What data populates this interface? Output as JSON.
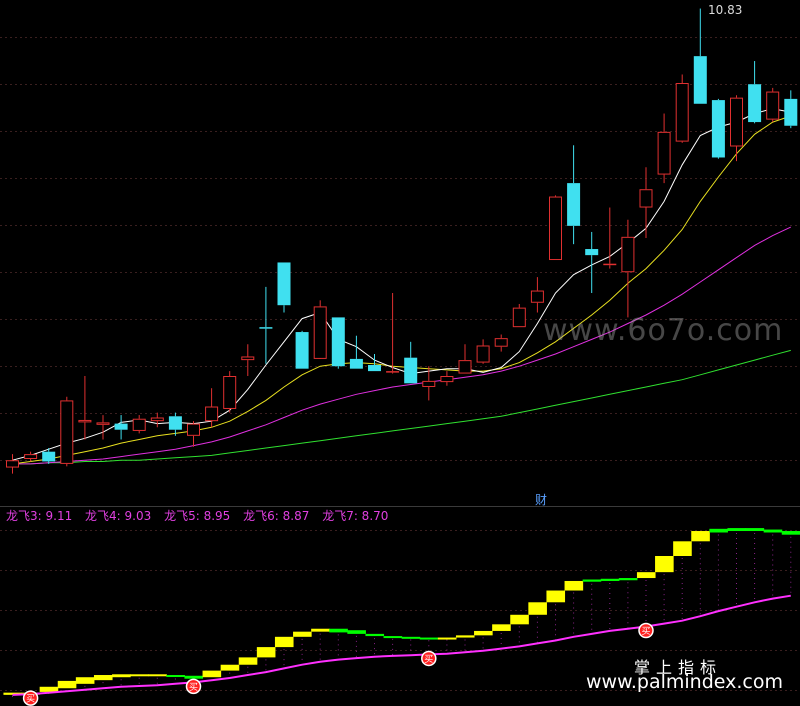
{
  "peak_label": "10.83",
  "cai_marker": "财",
  "watermarks": {
    "site1": "www.6o7o.com",
    "site2_cn": "掌上指标",
    "site2": "www.palmindex.com"
  },
  "indicator_legend": [
    {
      "label": "龙飞3: 9.11"
    },
    {
      "label": "龙飞4: 9.03"
    },
    {
      "label": "龙飞5: 8.95"
    },
    {
      "label": "龙飞6: 8.87"
    },
    {
      "label": "龙飞7: 8.70"
    }
  ],
  "buy_signal_glyph": "买",
  "colors": {
    "background": "#000000",
    "grid": "#3a1f1f",
    "candle_up": "#e03030",
    "candle_down": "#40e0f0",
    "ma5": "#ffffff",
    "ma10": "#e8e020",
    "ma20": "#e030e0",
    "ma60": "#30e030",
    "indicator_up": "#ffff00",
    "indicator_down": "#00ff00",
    "indicator_line": "#ff30ff",
    "legend_text": "#e040e0"
  },
  "chart_data": [
    {
      "type": "candlestick",
      "title": "",
      "ylim": [
        7.05,
        10.9
      ],
      "grid": true,
      "annotations": [
        "10.83",
        "财"
      ],
      "candles": [
        {
          "o": 7.07,
          "c": 7.13,
          "h": 7.18,
          "l": 7.02,
          "up": true
        },
        {
          "o": 7.14,
          "c": 7.18,
          "h": 7.2,
          "l": 7.12,
          "up": true
        },
        {
          "o": 7.2,
          "c": 7.12,
          "h": 7.23,
          "l": 7.1,
          "up": false
        },
        {
          "o": 7.1,
          "c": 7.62,
          "h": 7.65,
          "l": 7.08,
          "up": true
        },
        {
          "o": 7.44,
          "c": 7.46,
          "h": 7.82,
          "l": 7.3,
          "up": true
        },
        {
          "o": 7.42,
          "c": 7.44,
          "h": 7.5,
          "l": 7.3,
          "up": true
        },
        {
          "o": 7.43,
          "c": 7.38,
          "h": 7.5,
          "l": 7.3,
          "up": false
        },
        {
          "o": 7.37,
          "c": 7.47,
          "h": 7.5,
          "l": 7.35,
          "up": true
        },
        {
          "o": 7.45,
          "c": 7.48,
          "h": 7.52,
          "l": 7.4,
          "up": true
        },
        {
          "o": 7.49,
          "c": 7.38,
          "h": 7.52,
          "l": 7.33,
          "up": false
        },
        {
          "o": 7.33,
          "c": 7.43,
          "h": 7.45,
          "l": 7.24,
          "up": true
        },
        {
          "o": 7.45,
          "c": 7.57,
          "h": 7.72,
          "l": 7.4,
          "up": true
        },
        {
          "o": 7.55,
          "c": 7.82,
          "h": 7.86,
          "l": 7.52,
          "up": true
        },
        {
          "o": 7.95,
          "c": 7.98,
          "h": 8.08,
          "l": 7.82,
          "up": true
        },
        {
          "o": 8.22,
          "c": 8.21,
          "h": 8.55,
          "l": 7.92,
          "up": false
        },
        {
          "o": 8.75,
          "c": 8.4,
          "h": 8.75,
          "l": 8.34,
          "up": false
        },
        {
          "o": 8.18,
          "c": 7.88,
          "h": 8.19,
          "l": 7.88,
          "up": false
        },
        {
          "o": 7.96,
          "c": 8.39,
          "h": 8.44,
          "l": 7.98,
          "up": true
        },
        {
          "o": 8.3,
          "c": 7.9,
          "h": 8.3,
          "l": 7.88,
          "up": false
        },
        {
          "o": 7.96,
          "c": 7.88,
          "h": 8.15,
          "l": 7.88,
          "up": false
        },
        {
          "o": 7.91,
          "c": 7.86,
          "h": 8.0,
          "l": 7.86,
          "up": false
        },
        {
          "o": 7.86,
          "c": 7.86,
          "h": 8.5,
          "l": 7.84,
          "up": true
        },
        {
          "o": 7.97,
          "c": 7.76,
          "h": 8.1,
          "l": 7.76,
          "up": false
        },
        {
          "o": 7.73,
          "c": 7.78,
          "h": 7.9,
          "l": 7.62,
          "up": true
        },
        {
          "o": 7.77,
          "c": 7.82,
          "h": 7.86,
          "l": 7.74,
          "up": true
        },
        {
          "o": 7.84,
          "c": 7.95,
          "h": 8.08,
          "l": 7.84,
          "up": true
        },
        {
          "o": 7.93,
          "c": 8.07,
          "h": 8.12,
          "l": 7.92,
          "up": true
        },
        {
          "o": 8.06,
          "c": 8.13,
          "h": 8.16,
          "l": 8.02,
          "up": true
        },
        {
          "o": 8.22,
          "c": 8.38,
          "h": 8.41,
          "l": 8.22,
          "up": true
        },
        {
          "o": 8.42,
          "c": 8.52,
          "h": 8.63,
          "l": 8.34,
          "up": true
        },
        {
          "o": 8.77,
          "c": 9.29,
          "h": 9.3,
          "l": 8.77,
          "up": true
        },
        {
          "o": 9.4,
          "c": 9.05,
          "h": 9.71,
          "l": 8.9,
          "up": false
        },
        {
          "o": 8.86,
          "c": 8.81,
          "h": 9.0,
          "l": 8.5,
          "up": false
        },
        {
          "o": 8.73,
          "c": 8.74,
          "h": 9.2,
          "l": 8.7,
          "up": true
        },
        {
          "o": 8.67,
          "c": 8.96,
          "h": 9.1,
          "l": 8.3,
          "up": true
        },
        {
          "o": 9.2,
          "c": 9.35,
          "h": 9.53,
          "l": 8.95,
          "up": true
        },
        {
          "o": 9.47,
          "c": 9.82,
          "h": 9.97,
          "l": 9.4,
          "up": true
        },
        {
          "o": 9.74,
          "c": 10.22,
          "h": 10.29,
          "l": 9.73,
          "up": true
        },
        {
          "o": 10.44,
          "c": 10.05,
          "h": 10.83,
          "l": 10.05,
          "up": false
        },
        {
          "o": 10.08,
          "c": 9.61,
          "h": 10.09,
          "l": 9.6,
          "up": false
        },
        {
          "o": 9.7,
          "c": 10.1,
          "h": 10.12,
          "l": 9.58,
          "up": true
        },
        {
          "o": 10.21,
          "c": 9.9,
          "h": 10.4,
          "l": 9.89,
          "up": false
        },
        {
          "o": 9.92,
          "c": 10.15,
          "h": 10.18,
          "l": 9.9,
          "up": true
        },
        {
          "o": 10.09,
          "c": 9.87,
          "h": 10.16,
          "l": 9.85,
          "up": false
        }
      ],
      "ma5": [
        7.13,
        7.17,
        7.22,
        7.27,
        7.31,
        7.36,
        7.44,
        7.46,
        7.43,
        7.44,
        7.43,
        7.45,
        7.54,
        7.71,
        7.91,
        8.1,
        8.29,
        8.34,
        8.12,
        8.06,
        7.95,
        7.89,
        7.84,
        7.86,
        7.88,
        7.88,
        7.85,
        7.89,
        8.02,
        8.25,
        8.5,
        8.65,
        8.73,
        8.8,
        8.91,
        9.03,
        9.25,
        9.55,
        9.79,
        9.86,
        9.9,
        9.97,
        10.01,
        9.98
      ],
      "ma10": [
        7.1,
        7.12,
        7.14,
        7.17,
        7.2,
        7.23,
        7.27,
        7.3,
        7.33,
        7.35,
        7.37,
        7.4,
        7.45,
        7.53,
        7.62,
        7.73,
        7.83,
        7.9,
        7.92,
        7.93,
        7.92,
        7.9,
        7.89,
        7.88,
        7.87,
        7.86,
        7.86,
        7.88,
        7.93,
        8.01,
        8.1,
        8.21,
        8.32,
        8.44,
        8.58,
        8.7,
        8.85,
        9.02,
        9.25,
        9.45,
        9.64,
        9.8,
        9.9,
        9.95
      ],
      "ma20": [
        7.1,
        7.1,
        7.11,
        7.12,
        7.13,
        7.14,
        7.16,
        7.18,
        7.2,
        7.22,
        7.25,
        7.28,
        7.32,
        7.37,
        7.42,
        7.48,
        7.54,
        7.59,
        7.63,
        7.67,
        7.7,
        7.73,
        7.75,
        7.77,
        7.79,
        7.81,
        7.83,
        7.86,
        7.9,
        7.95,
        8.0,
        8.06,
        8.12,
        8.18,
        8.25,
        8.32,
        8.4,
        8.49,
        8.59,
        8.69,
        8.79,
        8.89,
        8.97,
        9.04
      ],
      "ma60": [
        7.1,
        7.1,
        7.11,
        7.11,
        7.12,
        7.12,
        7.13,
        7.13,
        7.14,
        7.15,
        7.16,
        7.17,
        7.19,
        7.21,
        7.23,
        7.25,
        7.27,
        7.29,
        7.31,
        7.33,
        7.35,
        7.37,
        7.39,
        7.41,
        7.43,
        7.45,
        7.47,
        7.49,
        7.52,
        7.55,
        7.58,
        7.61,
        7.64,
        7.67,
        7.7,
        7.73,
        7.76,
        7.79,
        7.83,
        7.87,
        7.91,
        7.95,
        7.99,
        8.03
      ]
    },
    {
      "type": "step",
      "title": "",
      "ylim": [
        6.9,
        9.35
      ],
      "series": [
        {
          "name": "龙飞3",
          "last": 9.11
        },
        {
          "name": "龙飞4",
          "last": 9.03
        },
        {
          "name": "龙飞5",
          "last": 8.95
        },
        {
          "name": "龙飞6",
          "last": 8.87
        },
        {
          "name": "龙飞7",
          "last": 8.7
        }
      ],
      "step_upper": [
        7.0,
        7.0,
        7.08,
        7.16,
        7.21,
        7.24,
        7.25,
        7.25,
        7.25,
        7.24,
        7.23,
        7.3,
        7.38,
        7.48,
        7.62,
        7.76,
        7.83,
        7.87,
        7.87,
        7.85,
        7.8,
        7.77,
        7.76,
        7.75,
        7.75,
        7.78,
        7.84,
        7.93,
        8.06,
        8.23,
        8.39,
        8.52,
        8.54,
        8.55,
        8.56,
        8.64,
        8.86,
        9.06,
        9.2,
        9.23,
        9.24,
        9.24,
        9.22,
        9.2
      ],
      "step_lower": [
        6.97,
        6.98,
        7.01,
        7.06,
        7.12,
        7.17,
        7.21,
        7.23,
        7.23,
        7.22,
        7.19,
        7.21,
        7.3,
        7.38,
        7.48,
        7.62,
        7.76,
        7.83,
        7.82,
        7.8,
        7.77,
        7.76,
        7.75,
        7.74,
        7.75,
        7.75,
        7.78,
        7.84,
        7.93,
        8.06,
        8.23,
        8.39,
        8.51,
        8.52,
        8.53,
        8.56,
        8.64,
        8.86,
        9.06,
        9.18,
        9.2,
        9.2,
        9.18,
        9.15
      ],
      "step_direction": [
        "up",
        "up",
        "up",
        "up",
        "up",
        "up",
        "up",
        "up",
        "up",
        "down",
        "down",
        "up",
        "up",
        "up",
        "up",
        "up",
        "up",
        "up",
        "down",
        "down",
        "down",
        "down",
        "down",
        "down",
        "up",
        "up",
        "up",
        "up",
        "up",
        "up",
        "up",
        "up",
        "down",
        "down",
        "down",
        "up",
        "up",
        "up",
        "up",
        "down",
        "down",
        "down",
        "down",
        "down"
      ],
      "indicator_line": [
        6.97,
        6.98,
        7.0,
        7.02,
        7.04,
        7.06,
        7.08,
        7.09,
        7.1,
        7.12,
        7.14,
        7.17,
        7.2,
        7.24,
        7.28,
        7.33,
        7.38,
        7.42,
        7.45,
        7.47,
        7.49,
        7.5,
        7.51,
        7.52,
        7.53,
        7.55,
        7.57,
        7.6,
        7.63,
        7.67,
        7.71,
        7.76,
        7.8,
        7.84,
        7.87,
        7.9,
        7.94,
        7.98,
        8.04,
        8.11,
        8.17,
        8.23,
        8.28,
        8.32
      ],
      "buy_signals": [
        1,
        10,
        23,
        35
      ]
    }
  ]
}
